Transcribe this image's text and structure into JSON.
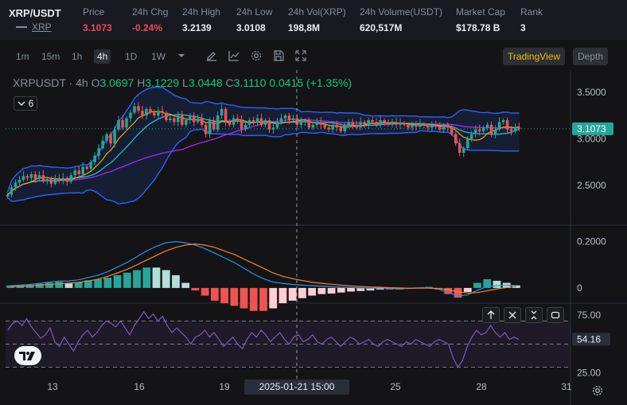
{
  "ticker": {
    "pair": "XRP/USDT",
    "coin": "XRP",
    "stats": [
      {
        "label": "Price",
        "value": "3.1073",
        "color": "red"
      },
      {
        "label": "24h Chg",
        "value": "-0.24%",
        "color": "red"
      },
      {
        "label": "24h High",
        "value": "3.2139"
      },
      {
        "label": "24h Low",
        "value": "3.0108"
      },
      {
        "label": "24h Vol(XRP)",
        "value": "198,8M"
      },
      {
        "label": "24h Volume(USDT)",
        "value": "620,517M"
      },
      {
        "label": "Market Cap",
        "value": "$178.78 B"
      },
      {
        "label": "Rank",
        "value": "3"
      }
    ]
  },
  "toolbar": {
    "timeframes": [
      "1m",
      "15m",
      "1h",
      "4h",
      "1D",
      "1W"
    ],
    "active_timeframe": "4h",
    "icons": [
      "chevron-down-icon",
      "draw-icon",
      "indicator-icon",
      "gear-icon",
      "save-icon",
      "fullscreen-icon"
    ],
    "views": {
      "tradingview": "TradingView",
      "depth": "Depth"
    }
  },
  "legend": {
    "symbol": "XRPUSDT",
    "interval": "4h",
    "o_label": "O",
    "o": "3.0697",
    "h_label": "H",
    "h": "3.1229",
    "l_label": "L",
    "l": "3.0448",
    "c_label": "C",
    "c": "3.1110",
    "change": "0.0415 (+1.35%)",
    "indicator_count": "6"
  },
  "colors": {
    "up": "#26a69a",
    "down": "#ef5350",
    "bb": "#2962ff",
    "ma_fast": "#f7a600",
    "ma_mid": "#2ec4d6",
    "ma_slow": "#9c27f0",
    "macd": "#2196f3",
    "signal": "#ff7f27",
    "rsi": "#7e57c2",
    "last_price": "#26a69a"
  },
  "chart_data": [
    {
      "type": "candlestick",
      "title": "",
      "y_ticks": [
        "3.5000",
        "3.0000",
        "2.5000"
      ],
      "ylim": [
        2.1,
        3.72
      ],
      "last_price_label": "3.1073",
      "x_ticks": [
        "13",
        "16",
        "19",
        "25",
        "28",
        "31"
      ],
      "crosshair_label": "2025-01-21  15:00",
      "overlays": [
        "bollinger-bands",
        "ma-fast",
        "ma-mid",
        "ma-slow"
      ],
      "closes": [
        2.4,
        2.48,
        2.53,
        2.56,
        2.6,
        2.58,
        2.62,
        2.57,
        2.61,
        2.55,
        2.57,
        2.52,
        2.58,
        2.55,
        2.58,
        2.54,
        2.61,
        2.66,
        2.62,
        2.7,
        2.68,
        2.75,
        2.82,
        2.9,
        2.98,
        3.05,
        2.95,
        3.1,
        3.2,
        3.12,
        3.22,
        3.28,
        3.35,
        3.3,
        3.25,
        3.32,
        3.28,
        3.25,
        3.3,
        3.28,
        3.2,
        3.22,
        3.18,
        3.25,
        3.15,
        3.2,
        3.25,
        3.18,
        3.22,
        3.15,
        3.05,
        3.2,
        3.1,
        3.25,
        3.32,
        3.18,
        3.15,
        3.22,
        3.2,
        3.1,
        3.15,
        3.2,
        3.18,
        3.22,
        3.15,
        3.2,
        3.1,
        3.12,
        3.18,
        3.22,
        3.25,
        3.2,
        3.22,
        3.15,
        3.18,
        3.2,
        3.12,
        3.15,
        3.18,
        3.15,
        3.12,
        3.1,
        3.15,
        3.12,
        3.08,
        3.15,
        3.18,
        3.15,
        3.12,
        3.18,
        3.15,
        3.2,
        3.18,
        3.15,
        3.2,
        3.18,
        3.15,
        3.18,
        3.15,
        3.17,
        3.15,
        3.12,
        3.15,
        3.13,
        3.16,
        3.14,
        3.12,
        3.15,
        3.13,
        3.1,
        3.15,
        3.12,
        3.05,
        2.95,
        2.85,
        2.9,
        3.0,
        3.05,
        3.1,
        3.08,
        3.12,
        3.15,
        3.05,
        3.1,
        3.18,
        3.2,
        3.1,
        3.08,
        3.12,
        3.11
      ]
    },
    {
      "type": "macd",
      "y_ticks": [
        "0.2000",
        "0"
      ],
      "ylim": [
        -0.045,
        0.24
      ],
      "macd": [
        0.01,
        0.012,
        0.015,
        0.02,
        0.025,
        0.03,
        0.03,
        0.035,
        0.045,
        0.055,
        0.07,
        0.09,
        0.11,
        0.135,
        0.16,
        0.18,
        0.195,
        0.2,
        0.195,
        0.185,
        0.17,
        0.15,
        0.13,
        0.11,
        0.085,
        0.06,
        0.04,
        0.025,
        0.02,
        0.015,
        0.012,
        0.01,
        0.008,
        0.005,
        0.003,
        0.002,
        0.0,
        -0.001,
        0.0,
        -0.002,
        -0.003,
        -0.002,
        0.0,
        0.001,
        -0.005,
        -0.02,
        -0.035,
        -0.03,
        -0.01,
        0.005,
        0.01,
        0.012,
        0.01
      ],
      "signal": [
        0.005,
        0.007,
        0.009,
        0.012,
        0.015,
        0.018,
        0.021,
        0.024,
        0.03,
        0.038,
        0.05,
        0.065,
        0.08,
        0.1,
        0.12,
        0.14,
        0.16,
        0.175,
        0.185,
        0.19,
        0.185,
        0.175,
        0.16,
        0.145,
        0.125,
        0.105,
        0.085,
        0.065,
        0.05,
        0.04,
        0.032,
        0.025,
        0.02,
        0.016,
        0.012,
        0.009,
        0.006,
        0.004,
        0.003,
        0.001,
        0.0,
        -0.001,
        -0.001,
        -0.001,
        -0.002,
        -0.008,
        -0.016,
        -0.022,
        -0.02,
        -0.012,
        -0.004,
        0.002,
        0.005
      ]
    },
    {
      "type": "rsi",
      "y_ticks": [
        "75.00",
        "25.00"
      ],
      "ylim": [
        20,
        82
      ],
      "last_label": "54.16",
      "values": [
        62,
        68,
        70,
        66,
        72,
        65,
        60,
        55,
        58,
        64,
        52,
        48,
        56,
        50,
        44,
        52,
        58,
        62,
        56,
        60,
        66,
        70,
        68,
        65,
        70,
        64,
        58,
        66,
        72,
        78,
        72,
        76,
        70,
        74,
        66,
        60,
        64,
        60,
        56,
        50,
        56,
        58,
        62,
        56,
        60,
        54,
        48,
        52,
        56,
        50,
        46,
        54,
        60,
        56,
        62,
        58,
        52,
        56,
        60,
        54,
        50,
        56,
        58,
        52,
        54,
        58,
        52,
        50,
        54,
        56,
        52,
        48,
        52,
        56,
        54,
        50,
        52,
        54,
        50,
        48,
        52,
        54,
        52,
        50,
        48,
        52,
        50,
        54,
        52,
        50,
        48,
        52,
        54,
        52,
        50,
        38,
        30,
        36,
        48,
        56,
        62,
        58,
        60,
        66,
        60,
        56,
        60,
        54,
        56,
        54
      ]
    }
  ]
}
